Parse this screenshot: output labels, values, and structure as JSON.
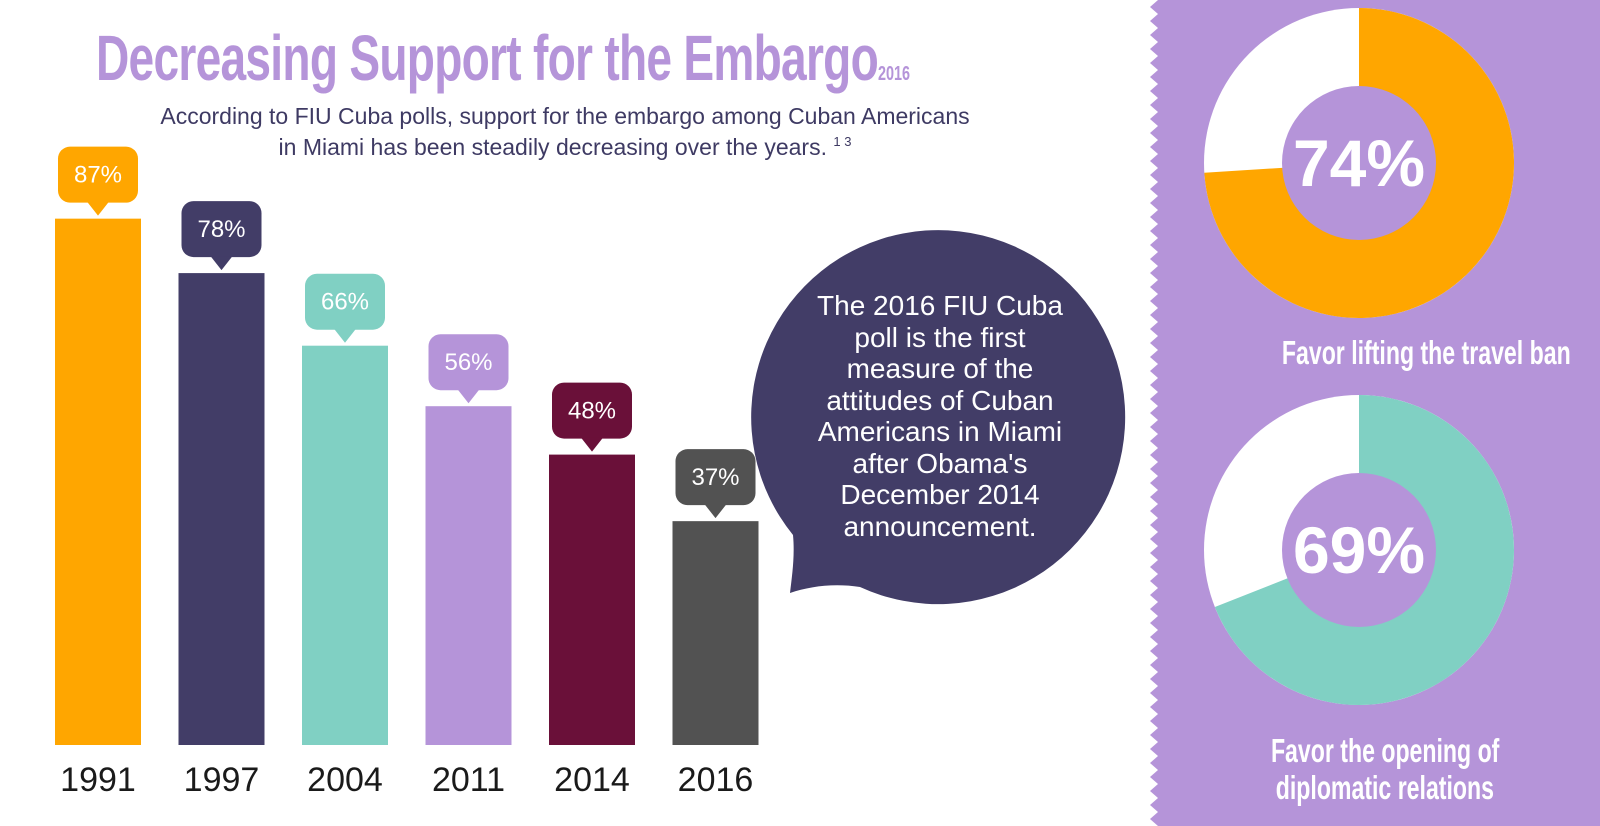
{
  "title": "Decreasing Support for the Embargo",
  "title_year": "2016",
  "subtitle": {
    "line1": "According to FIU Cuba polls, support for the embargo among Cuban Americans",
    "line2": "in Miami has been steadily decreasing over the years.",
    "footnotes": "1 3"
  },
  "chart_data": [
    {
      "type": "bar",
      "title": "Support for the embargo among Cuban Americans in Miami",
      "categories": [
        "1991",
        "1997",
        "2004",
        "2011",
        "2014",
        "2016"
      ],
      "values": [
        87,
        78,
        66,
        56,
        48,
        37
      ],
      "value_labels": [
        "87%",
        "78%",
        "66%",
        "56%",
        "48%",
        "37%"
      ],
      "colors": [
        "#ffa600",
        "#423d67",
        "#80d0c3",
        "#b594d9",
        "#6a1039",
        "#525252"
      ],
      "ylim": [
        0,
        100
      ],
      "xlabel": "",
      "ylabel": "",
      "grid": false
    },
    {
      "type": "pie",
      "style": "donut",
      "value": 74,
      "center_label": "74%",
      "label": "Favor lifting the travel ban",
      "fill_color": "#ffa600",
      "rest_color": "#ffffff"
    },
    {
      "type": "pie",
      "style": "donut",
      "value": 69,
      "center_label": "69%",
      "label": "Favor the opening of diplomatic relations",
      "label_lines": [
        "Favor the opening of",
        "diplomatic relations"
      ],
      "fill_color": "#80d0c3",
      "rest_color": "#ffffff"
    }
  ],
  "callout": {
    "lines": [
      "The 2016 FIU Cuba",
      "poll is the first",
      "measure of the",
      "attitudes of Cuban",
      "Americans in Miami",
      "after Obama's",
      "December 2014",
      "announcement."
    ],
    "color": "#423d67"
  },
  "panel_color": "#b594d9"
}
